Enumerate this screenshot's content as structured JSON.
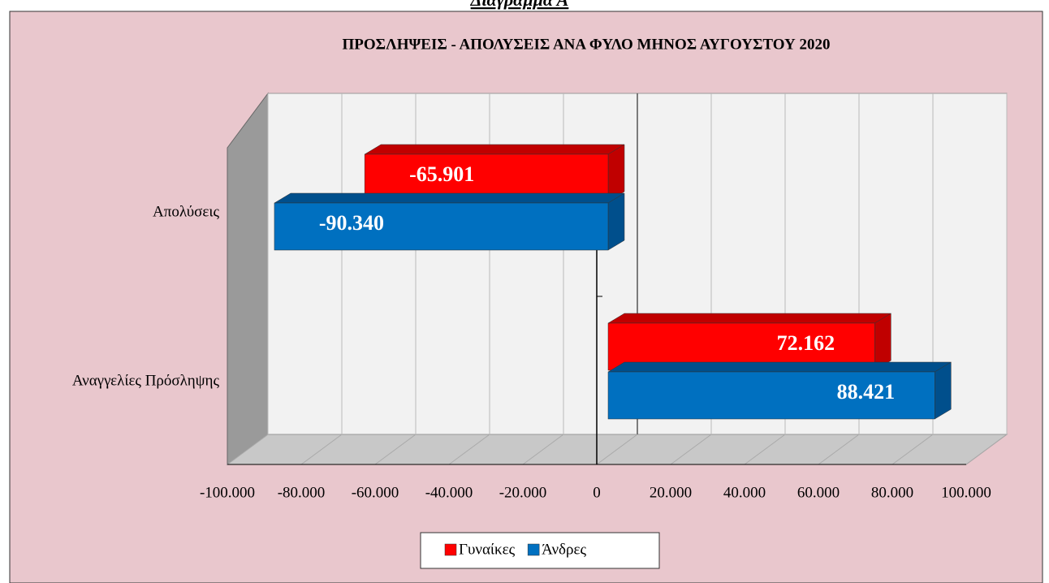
{
  "header": "Διάγραμμα Α",
  "chart_data": {
    "type": "bar3d_horizontal",
    "title": "ΠΡΟΣΛΗΨΕΙΣ - ΑΠΟΛΥΣΕΙΣ ΑΝΑ ΦΥΛΟ ΜΗΝΟΣ  ΑΥΓΟΥΣΤΟΥ  2020",
    "categories": [
      "Απολύσεις",
      "Αναγγελίες Πρόσληψης"
    ],
    "series": [
      {
        "name": "Γυναίκες",
        "color": "#ff0000",
        "values": [
          -65901,
          72162
        ],
        "value_labels": [
          "-65.901",
          "72.162"
        ]
      },
      {
        "name": "Άνδρες",
        "color": "#0070c0",
        "values": [
          -90340,
          88421
        ],
        "value_labels": [
          "-90.340",
          "88.421"
        ]
      }
    ],
    "xlim": [
      -100000,
      100000
    ],
    "xticks": [
      {
        "value": -100000,
        "label": "-100.000"
      },
      {
        "value": -80000,
        "label": "-80.000"
      },
      {
        "value": -60000,
        "label": "-60.000"
      },
      {
        "value": -40000,
        "label": "-40.000"
      },
      {
        "value": -20000,
        "label": "-20.000"
      },
      0,
      {
        "value": 20000,
        "label": "20.000"
      },
      {
        "value": 40000,
        "label": "40.000"
      },
      {
        "value": 60000,
        "label": "60.000"
      },
      {
        "value": 80000,
        "label": "80.000"
      },
      {
        "value": 100000,
        "label": "100.000"
      }
    ],
    "grid": true,
    "legend": "bottom"
  }
}
